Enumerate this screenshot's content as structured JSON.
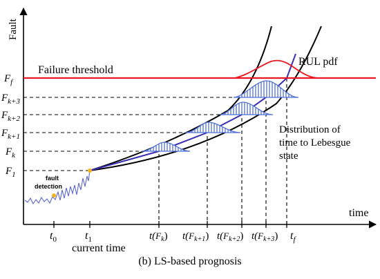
{
  "axes": {
    "y_label": "Fault",
    "x_label": "time"
  },
  "threshold": {
    "label": "Failure threshold",
    "color": "#e8141e"
  },
  "rul_label": "RUL pdf",
  "distribution_label": [
    "Distribution of",
    "time to Lebesgue",
    "state"
  ],
  "fault_detection_label": [
    "fault",
    "detection"
  ],
  "current_time_label": "current time",
  "y_ticks": [
    {
      "main": "F",
      "sub": "f"
    },
    {
      "main": "F",
      "sub": "k+3"
    },
    {
      "main": "F",
      "sub": "k+2"
    },
    {
      "main": "F",
      "sub": "k+1"
    },
    {
      "main": "F",
      "sub": "k"
    },
    {
      "main": "F",
      "sub": "1"
    }
  ],
  "x_ticks": [
    {
      "main": "t",
      "sub": "0"
    },
    {
      "main": "t",
      "sub": "1"
    },
    {
      "pre": "t(",
      "main": "F",
      "sub": "k",
      "post": ")"
    },
    {
      "pre": "t(",
      "main": "F",
      "sub": "k+1",
      "post": ")"
    },
    {
      "pre": "t(",
      "main": "F",
      "sub": "k+2",
      "post": ")"
    },
    {
      "pre": "t(",
      "main": "F",
      "sub": "k+3",
      "post": ")"
    },
    {
      "main": "t",
      "sub": "f"
    }
  ],
  "caption": "(b)  LS-based prognosis",
  "colors": {
    "prediction_line": "#3a2fb3",
    "distribution_fill": "#4f6fd6",
    "signal": "#5b66c8",
    "marker": "#f2b21c"
  }
}
